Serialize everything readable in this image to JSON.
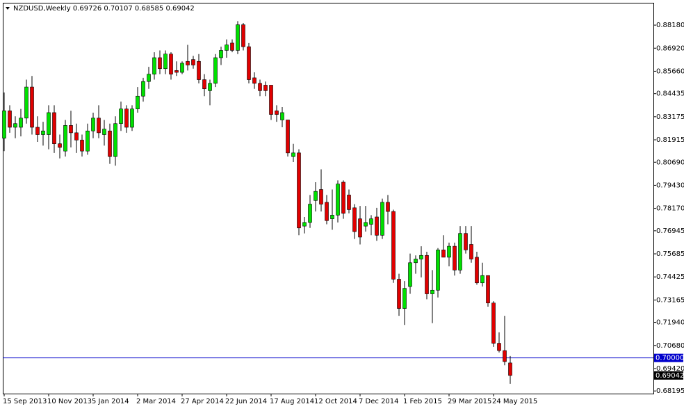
{
  "chart_data": {
    "type": "candlestick",
    "title": "NZDUSD,Weekly  0.69726 0.70107 0.68585 0.69042",
    "categories": [
      "15 Sep 2013",
      null,
      null,
      null,
      null,
      null,
      null,
      null,
      "10 Nov 2013",
      null,
      null,
      null,
      null,
      null,
      null,
      null,
      "5 Jan 2014",
      null,
      null,
      null,
      null,
      null,
      null,
      null,
      "2 Mar 2014",
      null,
      null,
      null,
      null,
      null,
      null,
      null,
      "27 Apr 2014",
      null,
      null,
      null,
      null,
      null,
      null,
      null,
      "22 Jun 2014",
      null,
      null,
      null,
      null,
      null,
      null,
      null,
      "17 Aug 2014",
      null,
      null,
      null,
      null,
      null,
      null,
      null,
      "12 Oct 2014",
      null,
      null,
      null,
      null,
      null,
      null,
      null,
      "7 Dec 2014",
      null,
      null,
      null,
      null,
      null,
      null,
      null,
      "1 Feb 2015",
      null,
      null,
      null,
      null,
      null,
      null,
      null,
      "29 Mar 2015",
      null,
      null,
      null,
      null,
      null,
      null,
      null,
      "24 May 2015",
      null,
      null,
      null
    ],
    "open": [
      0.82,
      0.835,
      0.826,
      0.826,
      0.831,
      0.848,
      0.826,
      0.822,
      0.822,
      0.834,
      0.817,
      0.813,
      0.827,
      0.823,
      0.819,
      0.813,
      0.824,
      0.831,
      0.822,
      0.824,
      0.81,
      0.828,
      0.836,
      0.826,
      0.836,
      0.843,
      0.851,
      0.855,
      0.864,
      0.858,
      0.866,
      0.857,
      0.856,
      0.862,
      0.863,
      0.862,
      0.852,
      0.846,
      0.85,
      0.864,
      0.868,
      0.872,
      0.868,
      0.882,
      0.87,
      0.853,
      0.85,
      0.849,
      0.849,
      0.835,
      0.83,
      0.83,
      0.81,
      0.812,
      0.772,
      0.774,
      0.786,
      0.792,
      0.785,
      0.776,
      0.778,
      0.796,
      0.789,
      0.782,
      0.776,
      0.772,
      0.773,
      0.777,
      0.767,
      0.785,
      0.78,
      0.743,
      0.727,
      0.739,
      0.752,
      0.754,
      0.756,
      0.735,
      0.737,
      0.759,
      0.755,
      0.761,
      0.748,
      0.768,
      0.762,
      0.755,
      0.741,
      0.745,
      0.73,
      0.708,
      0.704,
      0.69726
    ],
    "high": [
      0.845,
      0.838,
      0.832,
      0.836,
      0.852,
      0.854,
      0.832,
      0.829,
      0.838,
      0.838,
      0.822,
      0.83,
      0.835,
      0.828,
      0.822,
      0.828,
      0.834,
      0.838,
      0.83,
      0.828,
      0.832,
      0.84,
      0.838,
      0.838,
      0.848,
      0.853,
      0.859,
      0.867,
      0.868,
      0.868,
      0.867,
      0.862,
      0.862,
      0.871,
      0.865,
      0.866,
      0.855,
      0.852,
      0.866,
      0.87,
      0.874,
      0.874,
      0.884,
      0.883,
      0.872,
      0.856,
      0.852,
      0.851,
      0.849,
      0.838,
      0.837,
      0.83,
      0.817,
      0.814,
      0.777,
      0.789,
      0.796,
      0.803,
      0.789,
      0.792,
      0.797,
      0.797,
      0.792,
      0.784,
      0.783,
      0.783,
      0.778,
      0.782,
      0.787,
      0.789,
      0.781,
      0.746,
      0.742,
      0.757,
      0.756,
      0.761,
      0.758,
      0.748,
      0.76,
      0.767,
      0.763,
      0.763,
      0.772,
      0.772,
      0.772,
      0.758,
      0.752,
      0.745,
      0.731,
      0.714,
      0.723,
      0.70107
    ],
    "low": [
      0.813,
      0.823,
      0.82,
      0.821,
      0.828,
      0.822,
      0.818,
      0.816,
      0.814,
      0.812,
      0.809,
      0.81,
      0.815,
      0.812,
      0.81,
      0.811,
      0.82,
      0.82,
      0.816,
      0.806,
      0.805,
      0.824,
      0.823,
      0.824,
      0.834,
      0.84,
      0.847,
      0.852,
      0.855,
      0.855,
      0.852,
      0.854,
      0.855,
      0.857,
      0.858,
      0.85,
      0.843,
      0.838,
      0.848,
      0.86,
      0.864,
      0.867,
      0.866,
      0.868,
      0.85,
      0.847,
      0.843,
      0.843,
      0.83,
      0.829,
      0.826,
      0.81,
      0.807,
      0.767,
      0.768,
      0.771,
      0.78,
      0.78,
      0.773,
      0.77,
      0.774,
      0.776,
      0.779,
      0.765,
      0.762,
      0.769,
      0.767,
      0.764,
      0.765,
      0.773,
      0.741,
      0.723,
      0.718,
      0.735,
      0.746,
      0.744,
      0.732,
      0.719,
      0.733,
      0.755,
      0.75,
      0.745,
      0.746,
      0.757,
      0.752,
      0.74,
      0.739,
      0.728,
      0.706,
      0.703,
      0.696,
      0.68585
    ],
    "close": [
      0.835,
      0.826,
      0.828,
      0.831,
      0.848,
      0.826,
      0.822,
      0.824,
      0.834,
      0.817,
      0.815,
      0.827,
      0.823,
      0.819,
      0.813,
      0.824,
      0.831,
      0.823,
      0.825,
      0.81,
      0.828,
      0.836,
      0.826,
      0.836,
      0.843,
      0.851,
      0.855,
      0.864,
      0.858,
      0.866,
      0.855,
      0.856,
      0.861,
      0.86,
      0.86,
      0.852,
      0.847,
      0.85,
      0.864,
      0.868,
      0.871,
      0.868,
      0.882,
      0.87,
      0.852,
      0.85,
      0.846,
      0.846,
      0.833,
      0.833,
      0.834,
      0.812,
      0.812,
      0.771,
      0.774,
      0.784,
      0.791,
      0.784,
      0.775,
      0.778,
      0.795,
      0.779,
      0.781,
      0.769,
      0.766,
      0.774,
      0.776,
      0.767,
      0.785,
      0.78,
      0.743,
      0.727,
      0.738,
      0.752,
      0.754,
      0.756,
      0.735,
      0.737,
      0.759,
      0.755,
      0.761,
      0.748,
      0.768,
      0.759,
      0.754,
      0.741,
      0.745,
      0.73,
      0.708,
      0.704,
      0.698,
      0.69042
    ],
    "up_color": "#00e000",
    "down_color": "#e00000",
    "wick_color": "#000000",
    "ylim": [
      0.6805,
      0.894
    ],
    "yticks": [
      {
        "value": 0.8818,
        "label": "0.88180"
      },
      {
        "value": 0.8692,
        "label": "0.86920"
      },
      {
        "value": 0.8566,
        "label": "0.85660"
      },
      {
        "value": 0.84435,
        "label": "0.84435"
      },
      {
        "value": 0.83175,
        "label": "0.83175"
      },
      {
        "value": 0.81915,
        "label": "0.81915"
      },
      {
        "value": 0.8069,
        "label": "0.80690"
      },
      {
        "value": 0.7943,
        "label": "0.79430"
      },
      {
        "value": 0.7817,
        "label": "0.78170"
      },
      {
        "value": 0.76945,
        "label": "0.76945"
      },
      {
        "value": 0.75685,
        "label": "0.75685"
      },
      {
        "value": 0.74425,
        "label": "0.74425"
      },
      {
        "value": 0.73165,
        "label": "0.73165"
      },
      {
        "value": 0.7194,
        "label": "0.71940"
      },
      {
        "value": 0.7068,
        "label": "0.70680"
      },
      {
        "value": 0.6942,
        "label": "0.69420"
      },
      {
        "value": 0.68195,
        "label": "0.68195"
      }
    ],
    "hline": {
      "value": 0.7,
      "label": "0.70000",
      "color": "#0000cc"
    },
    "last_price": {
      "value": 0.69042,
      "label": "0.69042"
    }
  }
}
